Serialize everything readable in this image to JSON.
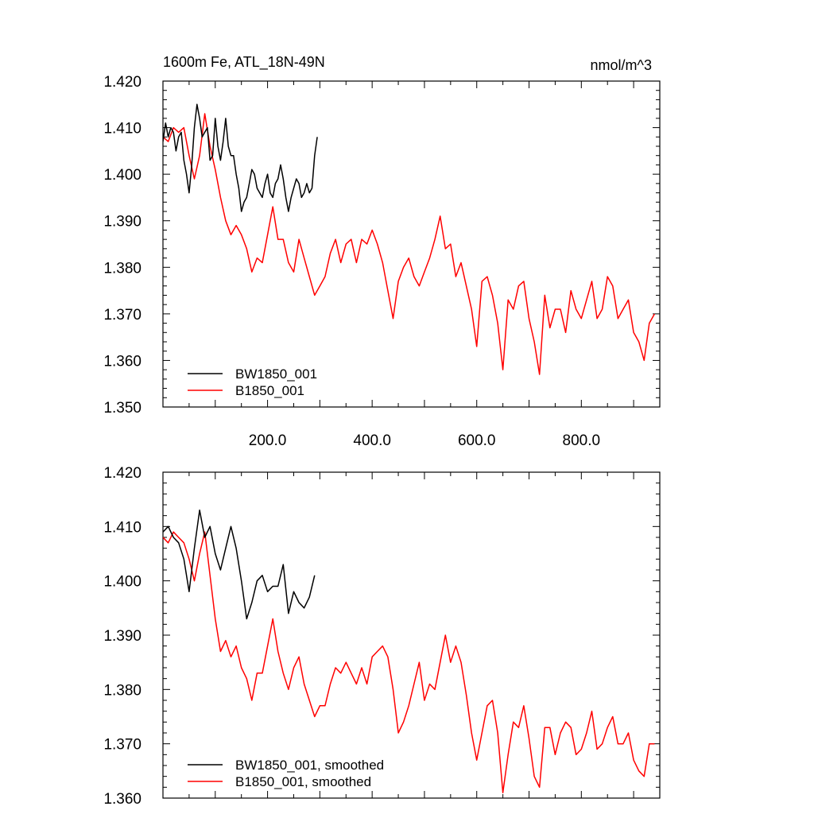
{
  "chart_data": [
    {
      "type": "line",
      "title": "1600m Fe, ATL_18N-49N",
      "title_right": "nmol/m^3",
      "xlim": [
        0,
        950
      ],
      "ylim": [
        1.35,
        1.42
      ],
      "x_ticks": [
        200,
        400,
        600,
        800
      ],
      "x_tick_labels": [
        "200.0",
        "400.0",
        "600.0",
        "800.0"
      ],
      "y_ticks": [
        1.35,
        1.36,
        1.37,
        1.38,
        1.39,
        1.4,
        1.41,
        1.42
      ],
      "y_tick_labels": [
        "1.350",
        "1.360",
        "1.370",
        "1.380",
        "1.390",
        "1.400",
        "1.410",
        "1.420"
      ],
      "legend_position": "bottom-left",
      "series": [
        {
          "name": "BW1850_001",
          "color": "#000000",
          "x": [
            0,
            5,
            10,
            15,
            20,
            25,
            30,
            35,
            40,
            45,
            50,
            55,
            60,
            65,
            70,
            75,
            80,
            85,
            90,
            95,
            100,
            105,
            110,
            115,
            120,
            125,
            130,
            135,
            140,
            145,
            150,
            155,
            160,
            165,
            170,
            175,
            180,
            185,
            190,
            195,
            200,
            205,
            210,
            215,
            220,
            225,
            230,
            235,
            240,
            245,
            250,
            255,
            260,
            265,
            270,
            275,
            280,
            285,
            290,
            295
          ],
          "values": [
            1.407,
            1.411,
            1.408,
            1.41,
            1.409,
            1.405,
            1.408,
            1.409,
            1.403,
            1.4,
            1.396,
            1.402,
            1.41,
            1.415,
            1.412,
            1.408,
            1.409,
            1.41,
            1.403,
            1.404,
            1.412,
            1.406,
            1.403,
            1.407,
            1.412,
            1.406,
            1.404,
            1.404,
            1.4,
            1.397,
            1.392,
            1.394,
            1.395,
            1.398,
            1.401,
            1.4,
            1.397,
            1.396,
            1.395,
            1.398,
            1.4,
            1.396,
            1.395,
            1.398,
            1.399,
            1.402,
            1.399,
            1.395,
            1.392,
            1.395,
            1.397,
            1.399,
            1.398,
            1.395,
            1.396,
            1.398,
            1.396,
            1.397,
            1.404,
            1.408
          ]
        },
        {
          "name": "B1850_001",
          "color": "#ff0000",
          "x": [
            0,
            10,
            20,
            30,
            40,
            50,
            60,
            70,
            80,
            90,
            100,
            110,
            120,
            130,
            140,
            150,
            160,
            170,
            180,
            190,
            200,
            210,
            220,
            230,
            240,
            250,
            260,
            270,
            280,
            290,
            300,
            310,
            320,
            330,
            340,
            350,
            360,
            370,
            380,
            390,
            400,
            410,
            420,
            430,
            440,
            450,
            460,
            470,
            480,
            490,
            500,
            510,
            520,
            530,
            540,
            550,
            560,
            570,
            580,
            590,
            600,
            610,
            620,
            630,
            640,
            650,
            660,
            670,
            680,
            690,
            700,
            710,
            720,
            730,
            740,
            750,
            760,
            770,
            780,
            790,
            800,
            810,
            820,
            830,
            840,
            850,
            860,
            870,
            880,
            890,
            900,
            910,
            920,
            930,
            940
          ],
          "values": [
            1.408,
            1.407,
            1.41,
            1.409,
            1.41,
            1.404,
            1.399,
            1.404,
            1.413,
            1.406,
            1.401,
            1.395,
            1.39,
            1.387,
            1.389,
            1.387,
            1.384,
            1.379,
            1.382,
            1.381,
            1.387,
            1.393,
            1.386,
            1.386,
            1.381,
            1.379,
            1.386,
            1.382,
            1.378,
            1.374,
            1.376,
            1.378,
            1.383,
            1.386,
            1.381,
            1.385,
            1.386,
            1.381,
            1.386,
            1.385,
            1.388,
            1.385,
            1.381,
            1.375,
            1.369,
            1.377,
            1.38,
            1.382,
            1.378,
            1.376,
            1.379,
            1.382,
            1.386,
            1.391,
            1.384,
            1.385,
            1.378,
            1.381,
            1.376,
            1.371,
            1.363,
            1.377,
            1.378,
            1.374,
            1.368,
            1.358,
            1.373,
            1.371,
            1.376,
            1.377,
            1.369,
            1.364,
            1.357,
            1.374,
            1.367,
            1.371,
            1.371,
            1.366,
            1.375,
            1.371,
            1.369,
            1.373,
            1.377,
            1.369,
            1.371,
            1.378,
            1.376,
            1.369,
            1.371,
            1.373,
            1.366,
            1.364,
            1.36,
            1.368,
            1.37
          ]
        }
      ]
    },
    {
      "type": "line",
      "title": "",
      "xlim": [
        0,
        950
      ],
      "ylim": [
        1.36,
        1.42
      ],
      "y_ticks": [
        1.36,
        1.37,
        1.38,
        1.39,
        1.4,
        1.41,
        1.42
      ],
      "y_tick_labels": [
        "1.360",
        "1.370",
        "1.380",
        "1.390",
        "1.400",
        "1.410",
        "1.420"
      ],
      "legend_position": "bottom-left",
      "series": [
        {
          "name": "BW1850_001, smoothed",
          "color": "#000000",
          "x": [
            0,
            10,
            20,
            30,
            40,
            50,
            60,
            70,
            80,
            90,
            100,
            110,
            120,
            130,
            140,
            150,
            160,
            170,
            180,
            190,
            200,
            210,
            220,
            230,
            240,
            250,
            260,
            270,
            280,
            290
          ],
          "values": [
            1.409,
            1.41,
            1.408,
            1.407,
            1.404,
            1.398,
            1.406,
            1.413,
            1.408,
            1.41,
            1.405,
            1.402,
            1.406,
            1.41,
            1.406,
            1.4,
            1.393,
            1.396,
            1.4,
            1.401,
            1.398,
            1.399,
            1.399,
            1.403,
            1.394,
            1.398,
            1.396,
            1.395,
            1.397,
            1.401
          ]
        },
        {
          "name": "B1850_001, smoothed",
          "color": "#ff0000",
          "x": [
            0,
            10,
            20,
            30,
            40,
            50,
            60,
            70,
            80,
            90,
            100,
            110,
            120,
            130,
            140,
            150,
            160,
            170,
            180,
            190,
            200,
            210,
            220,
            230,
            240,
            250,
            260,
            270,
            280,
            290,
            300,
            310,
            320,
            330,
            340,
            350,
            360,
            370,
            380,
            390,
            400,
            410,
            420,
            430,
            440,
            450,
            460,
            470,
            480,
            490,
            500,
            510,
            520,
            530,
            540,
            550,
            560,
            570,
            580,
            590,
            600,
            610,
            620,
            630,
            640,
            650,
            660,
            670,
            680,
            690,
            700,
            710,
            720,
            730,
            740,
            750,
            760,
            770,
            780,
            790,
            800,
            810,
            820,
            830,
            840,
            850,
            860,
            870,
            880,
            890,
            900,
            910,
            920,
            930,
            940
          ],
          "values": [
            1.408,
            1.407,
            1.409,
            1.408,
            1.407,
            1.404,
            1.4,
            1.405,
            1.409,
            1.401,
            1.393,
            1.387,
            1.389,
            1.386,
            1.388,
            1.384,
            1.382,
            1.378,
            1.383,
            1.383,
            1.388,
            1.393,
            1.387,
            1.383,
            1.38,
            1.384,
            1.386,
            1.381,
            1.378,
            1.375,
            1.377,
            1.377,
            1.381,
            1.384,
            1.383,
            1.385,
            1.383,
            1.381,
            1.384,
            1.381,
            1.386,
            1.387,
            1.388,
            1.386,
            1.38,
            1.372,
            1.374,
            1.377,
            1.381,
            1.385,
            1.378,
            1.381,
            1.38,
            1.385,
            1.39,
            1.385,
            1.388,
            1.385,
            1.379,
            1.372,
            1.367,
            1.372,
            1.377,
            1.378,
            1.372,
            1.361,
            1.368,
            1.374,
            1.373,
            1.377,
            1.371,
            1.364,
            1.362,
            1.373,
            1.373,
            1.368,
            1.372,
            1.374,
            1.373,
            1.368,
            1.369,
            1.372,
            1.376,
            1.369,
            1.37,
            1.373,
            1.375,
            1.37,
            1.37,
            1.372,
            1.367,
            1.365,
            1.364,
            1.37,
            1.37
          ]
        }
      ]
    }
  ]
}
